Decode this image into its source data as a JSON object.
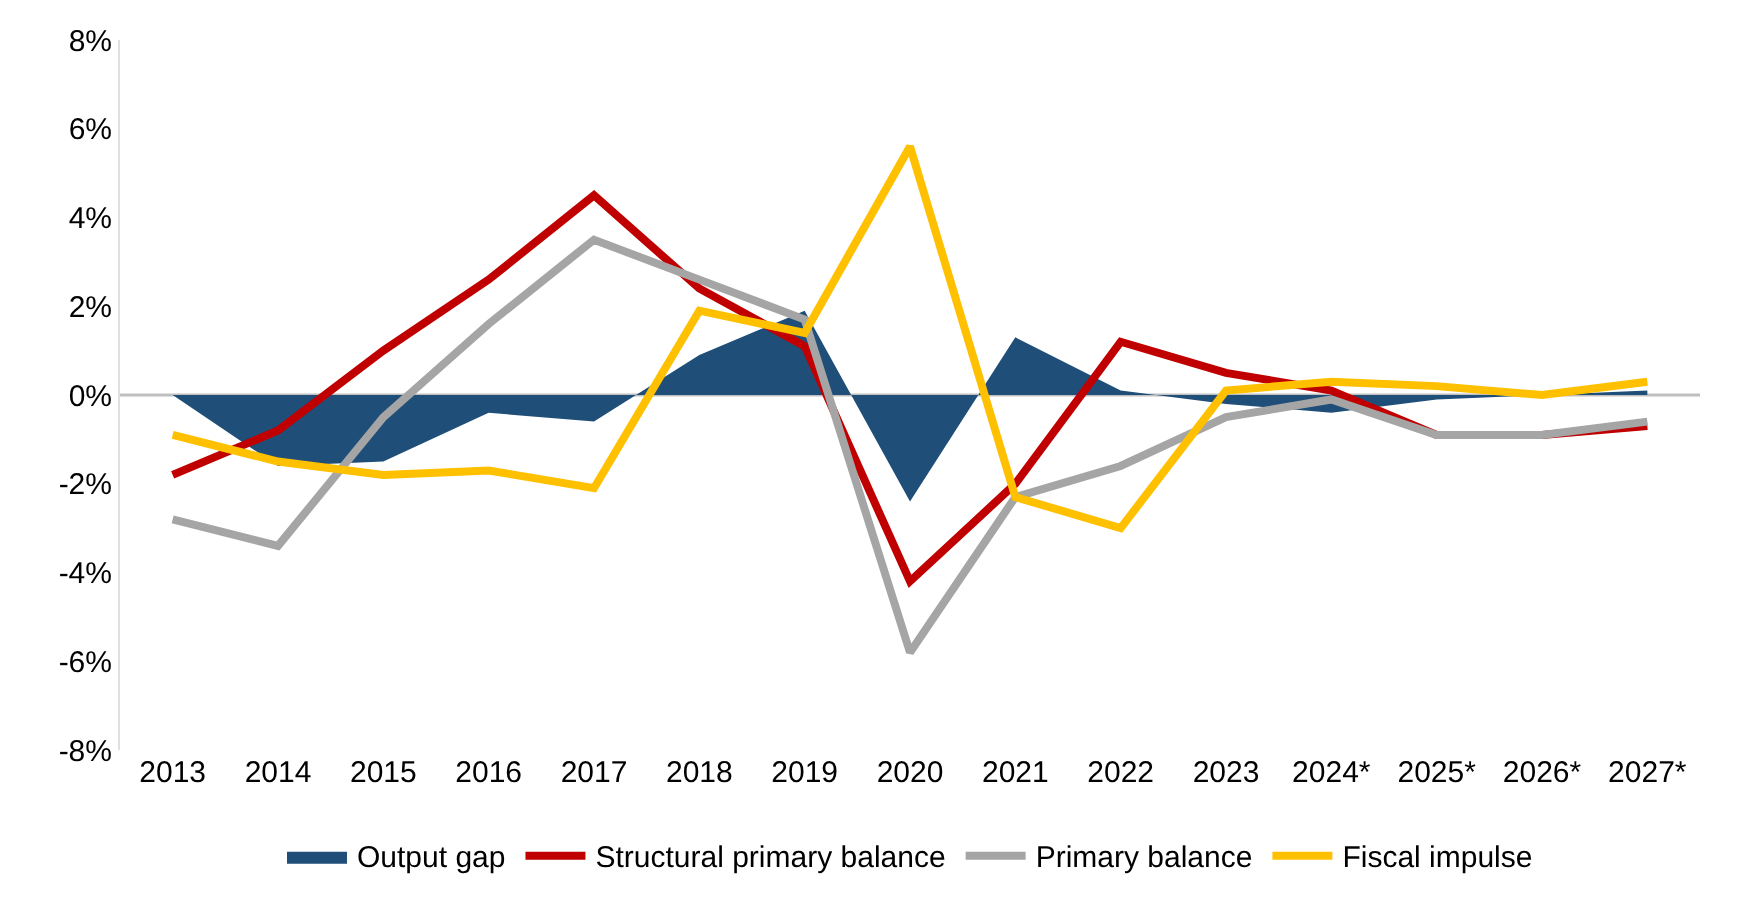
{
  "chart_data": {
    "type": "line",
    "categories": [
      "2013",
      "2014",
      "2015",
      "2016",
      "2017",
      "2018",
      "2019",
      "2020",
      "2021",
      "2022",
      "2023",
      "2024*",
      "2025*",
      "2026*",
      "2027*"
    ],
    "series": [
      {
        "name": "Output gap",
        "type": "area",
        "color": "#1f4e79",
        "values": [
          0,
          -1.6,
          -1.5,
          -0.4,
          -0.6,
          0.9,
          1.9,
          -2.4,
          1.3,
          0.1,
          -0.2,
          -0.4,
          -0.1,
          0,
          0.1
        ]
      },
      {
        "name": "Structural primary balance",
        "color": "#c00000",
        "values": [
          -1.8,
          -0.8,
          1.0,
          2.6,
          4.5,
          2.4,
          1.1,
          -4.2,
          -2.0,
          1.2,
          0.5,
          0.1,
          -0.9,
          -0.9,
          -0.7
        ]
      },
      {
        "name": "Primary balance",
        "color": "#a5a5a5",
        "values": [
          -2.8,
          -3.4,
          -0.5,
          1.6,
          3.5,
          2.6,
          1.7,
          -5.8,
          -2.3,
          -1.6,
          -0.5,
          -0.1,
          -0.9,
          -0.9,
          -0.6
        ]
      },
      {
        "name": "Fiscal impulse",
        "color": "#ffc000",
        "values": [
          -0.9,
          -1.5,
          -1.8,
          -1.7,
          -2.1,
          1.9,
          1.4,
          5.6,
          -2.3,
          -3.0,
          0.1,
          0.3,
          0.2,
          0.0,
          0.3
        ]
      }
    ],
    "ylim": [
      -8,
      8
    ],
    "yticks": [
      {
        "value": -8,
        "label": "-8%"
      },
      {
        "value": -6,
        "label": "-6%"
      },
      {
        "value": -4,
        "label": "-4%"
      },
      {
        "value": -2,
        "label": "-2%"
      },
      {
        "value": 0,
        "label": "0%"
      },
      {
        "value": 2,
        "label": "2%"
      },
      {
        "value": 4,
        "label": "4%"
      },
      {
        "value": 6,
        "label": "6%"
      },
      {
        "value": 8,
        "label": "8%"
      }
    ],
    "ref_lines": [
      {
        "axis": "y",
        "value": 0,
        "color": "#bfbfbf"
      }
    ],
    "grid": false,
    "legend": "bottom",
    "marker": "none",
    "line_style": "solid"
  }
}
